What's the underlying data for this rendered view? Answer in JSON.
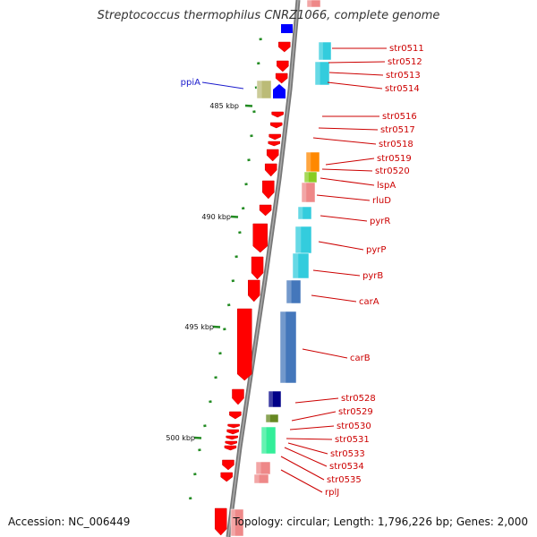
{
  "title": "Streptococcus thermophilus CNRZ1066, complete genome",
  "footer": {
    "accession_label": "Accession:",
    "accession": "NC_006449",
    "summary": "Topology: circular; Length: 1,796,226 bp; Genes: 2,000"
  },
  "colors": {
    "backbone": "#808080",
    "reverse_gene": "#ff0000",
    "forward_gene": "#0000ff",
    "label_reverse": "#cc0000",
    "label_forward": "#1a1acc",
    "ruler_tick": "#228b22",
    "cog_cyan": "#33ccdd",
    "cog_blue": "#4477bb",
    "cog_orange": "#ff8800",
    "cog_green": "#88cc22",
    "cog_pink": "#ee8888",
    "cog_navy": "#000088",
    "cog_olive": "#668822",
    "cog_mint": "#33ee99",
    "cog_khaki": "#bbbb77"
  },
  "ruler_labels": [
    "485 kbp",
    "490 kbp",
    "495 kbp",
    "500 kbp"
  ],
  "forward_labels": [
    "ppiA"
  ],
  "reverse_labels": [
    "str0511",
    "str0512",
    "str0513",
    "str0514",
    "str0516",
    "str0517",
    "str0518",
    "str0519",
    "str0520",
    "lspA",
    "rluD",
    "pyrR",
    "pyrP",
    "pyrB",
    "carA",
    "carB",
    "str0528",
    "str0529",
    "str0530",
    "str0531",
    "str0533",
    "str0534",
    "str0535",
    "rplJ"
  ]
}
